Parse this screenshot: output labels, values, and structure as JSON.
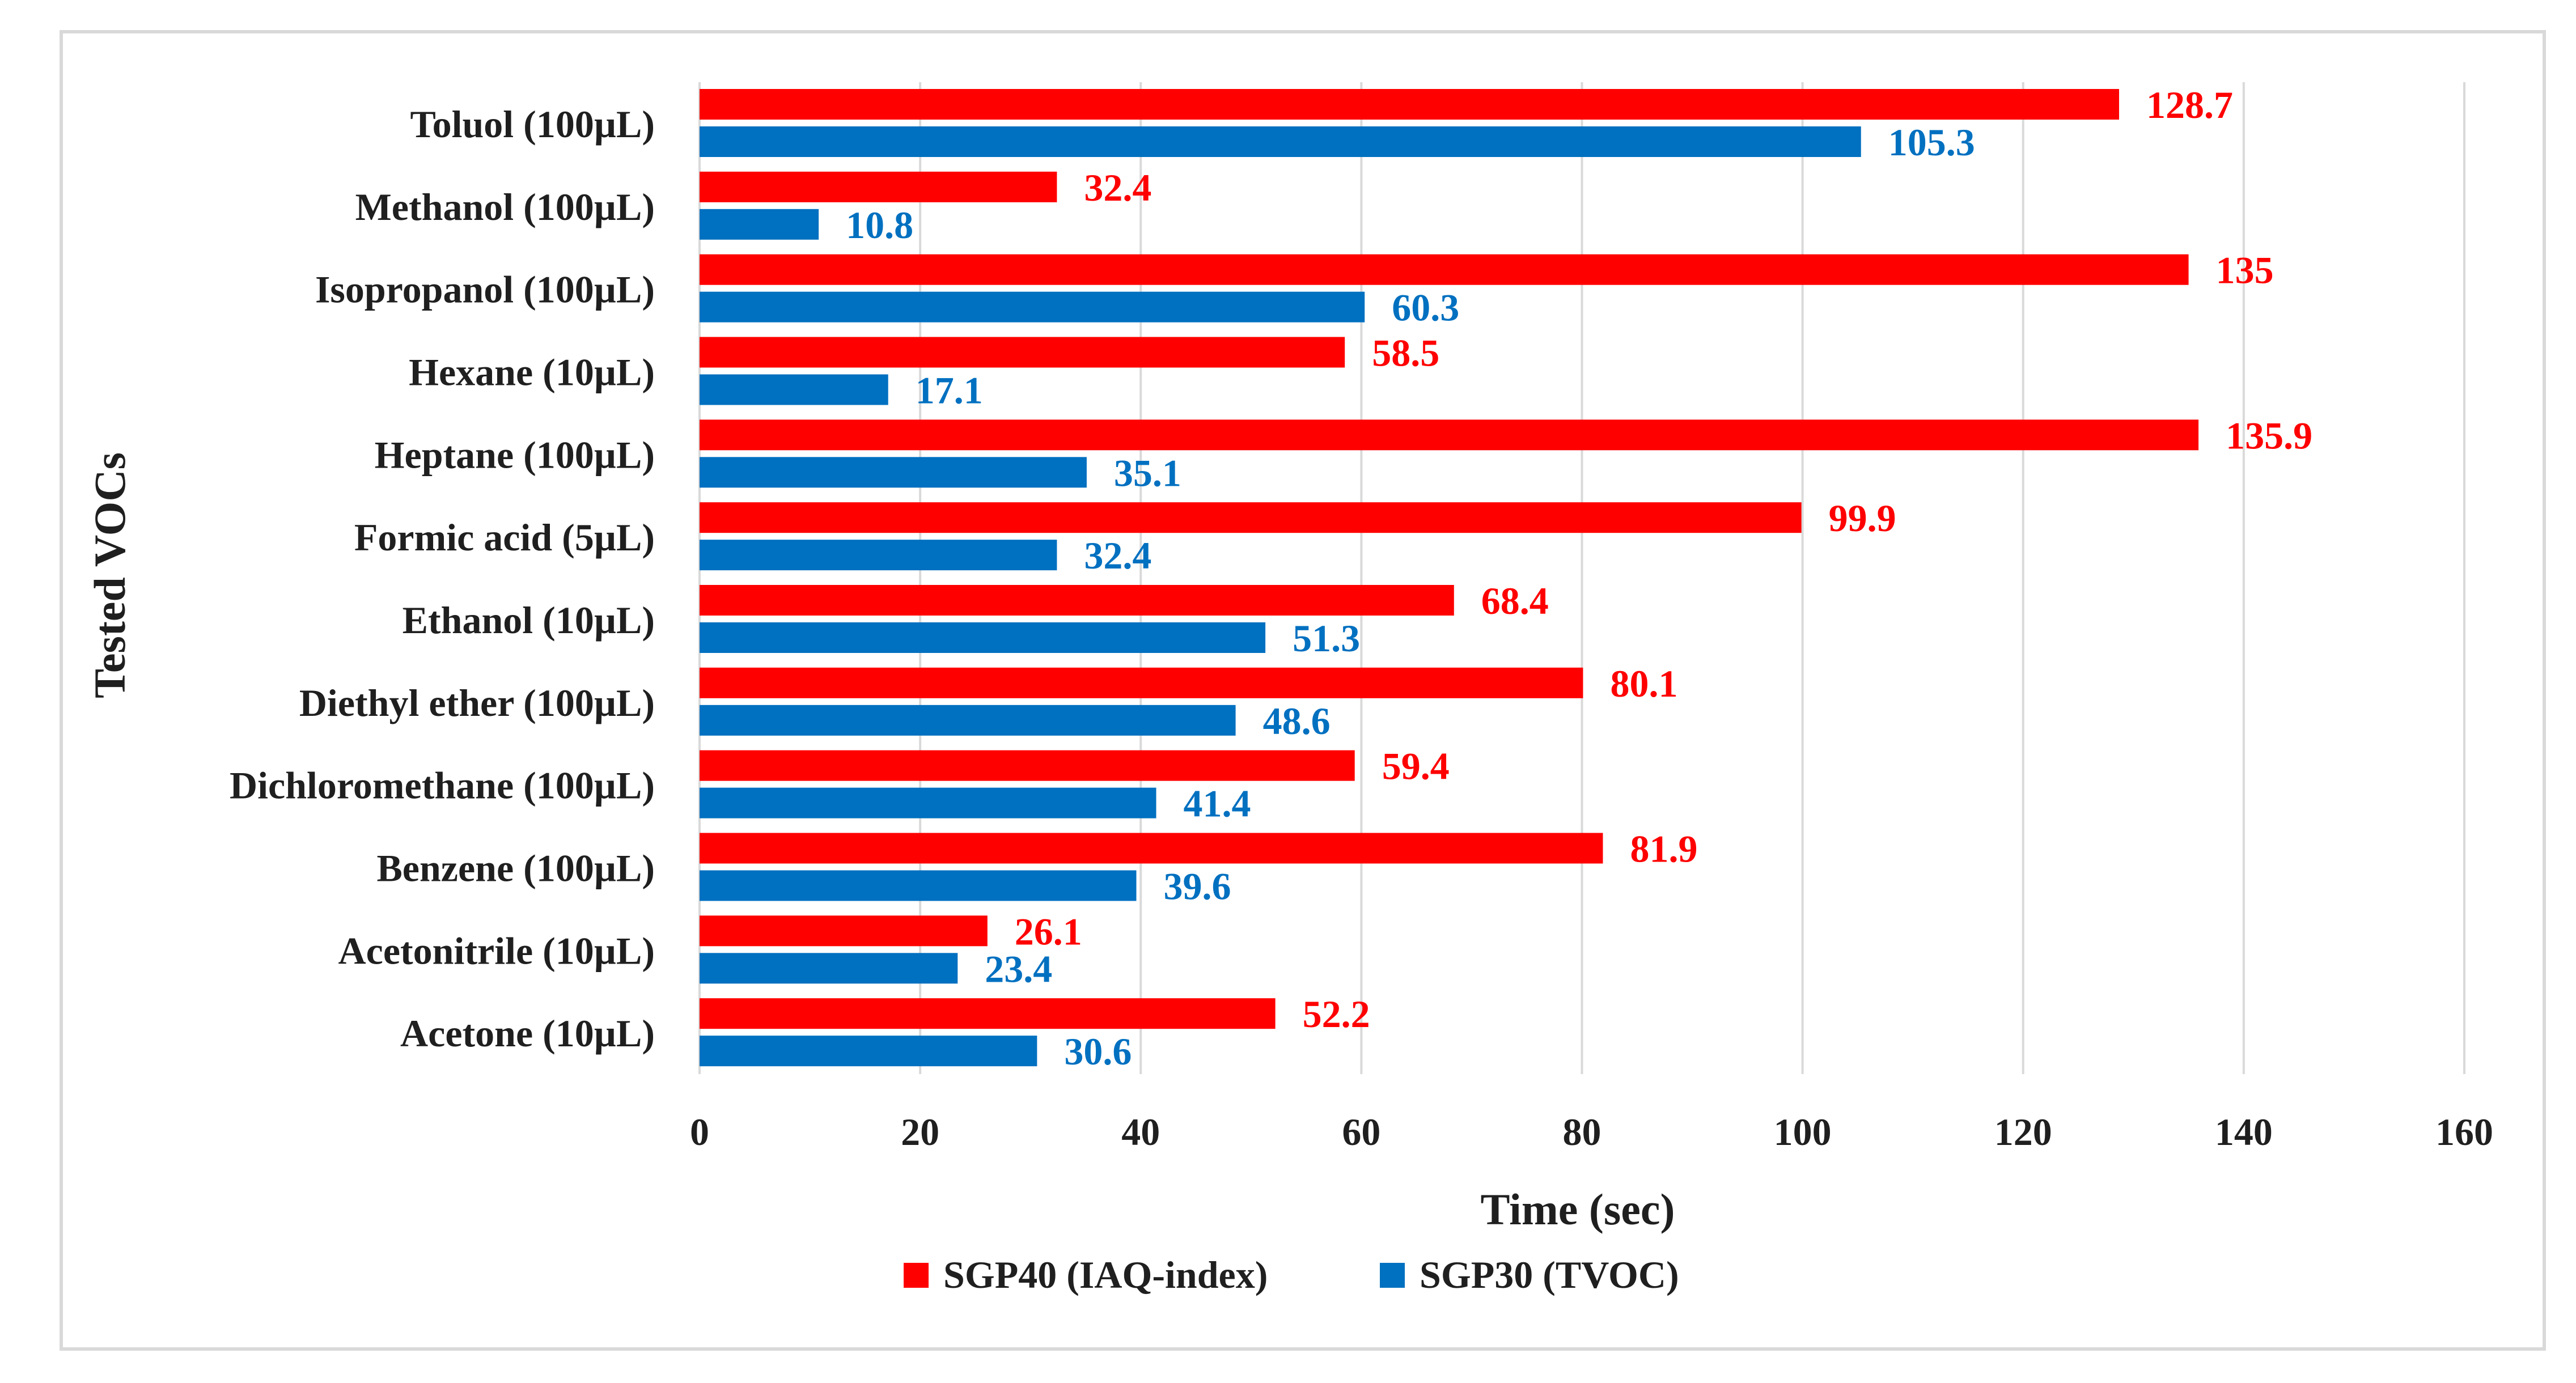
{
  "chart_data": {
    "type": "bar",
    "orientation": "horizontal",
    "title": "",
    "xlabel": "Time (sec)",
    "ylabel": "Tested VOCs",
    "xlim": [
      0,
      160
    ],
    "xticks": [
      "0",
      "20",
      "40",
      "60",
      "80",
      "100",
      "120",
      "140",
      "160"
    ],
    "grid": true,
    "legend_position": "bottom",
    "categories": [
      "Toluol (100µL)",
      "Methanol (100µL)",
      "Isopropanol (100µL)",
      "Hexane (10µL)",
      "Heptane (100µL)",
      "Formic acid (5µL)",
      "Ethanol (10µL)",
      "Diethyl ether (100µL)",
      "Dichloromethane (100µL)",
      "Benzene (100µL)",
      "Acetonitrile (10µL)",
      "Acetone (10µL)"
    ],
    "series": [
      {
        "name": "SGP40 (IAQ-index)",
        "color": "#ff0000",
        "values": [
          128.7,
          32.4,
          135,
          58.5,
          135.9,
          99.9,
          68.4,
          80.1,
          59.4,
          81.9,
          26.1,
          52.2
        ],
        "labels": [
          "128.7",
          "32.4",
          "135",
          "58.5",
          "135.9",
          "99.9",
          "68.4",
          "80.1",
          "59.4",
          "81.9",
          "26.1",
          "52.2"
        ]
      },
      {
        "name": "SGP30 (TVOC)",
        "color": "#0070c0",
        "values": [
          105.3,
          10.8,
          60.3,
          17.1,
          35.1,
          32.4,
          51.3,
          48.6,
          41.4,
          39.6,
          23.4,
          30.6
        ],
        "labels": [
          "105.3",
          "10.8",
          "60.3",
          "17.1",
          "35.1",
          "32.4",
          "51.3",
          "48.6",
          "41.4",
          "39.6",
          "23.4",
          "30.6"
        ]
      }
    ]
  }
}
